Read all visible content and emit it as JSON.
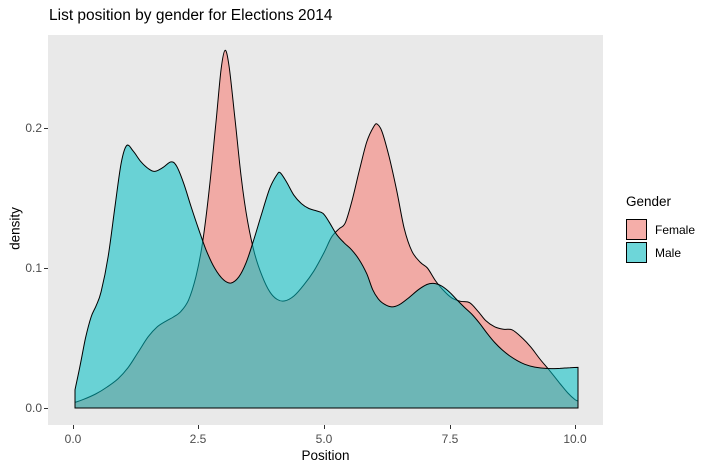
{
  "title": "List position by gender for Elections 2014",
  "axes": {
    "x": {
      "label": "Position",
      "ticks": [
        "0.0",
        "2.5",
        "5.0",
        "7.5",
        "10.0"
      ]
    },
    "y": {
      "label": "density",
      "ticks": [
        "0.0",
        "0.1",
        "0.2"
      ]
    }
  },
  "legend": {
    "title": "Gender",
    "items": [
      {
        "label": "Female",
        "color": "#F8766D"
      },
      {
        "label": "Male",
        "color": "#00BFC4"
      }
    ]
  },
  "panel_background": "#e9e9e9",
  "chart_data": {
    "type": "area",
    "subtype": "overlapping-density",
    "title": "List position by gender for Elections 2014",
    "xlabel": "Position",
    "ylabel": "density",
    "xlim": [
      -0.5,
      10.6
    ],
    "ylim": [
      -0.013,
      0.266
    ],
    "x_ticks": [
      0,
      2.5,
      5,
      7.5,
      10
    ],
    "y_ticks": [
      0,
      0.1,
      0.2
    ],
    "grid": false,
    "legend_position": "right",
    "fill_opacity": 0.55,
    "outline_color": "#000000",
    "series": [
      {
        "name": "Female",
        "color": "#F8766D",
        "points": [
          [
            0.04,
            0.004
          ],
          [
            0.2,
            0.006
          ],
          [
            0.45,
            0.01
          ],
          [
            0.68,
            0.015
          ],
          [
            0.9,
            0.021
          ],
          [
            1.1,
            0.029
          ],
          [
            1.3,
            0.04
          ],
          [
            1.5,
            0.051
          ],
          [
            1.68,
            0.058
          ],
          [
            1.85,
            0.062
          ],
          [
            2.0,
            0.065
          ],
          [
            2.15,
            0.069
          ],
          [
            2.3,
            0.077
          ],
          [
            2.45,
            0.094
          ],
          [
            2.58,
            0.118
          ],
          [
            2.72,
            0.158
          ],
          [
            2.85,
            0.205
          ],
          [
            2.95,
            0.242
          ],
          [
            3.03,
            0.2555
          ],
          [
            3.11,
            0.244
          ],
          [
            3.22,
            0.209
          ],
          [
            3.35,
            0.165
          ],
          [
            3.48,
            0.133
          ],
          [
            3.62,
            0.11
          ],
          [
            3.77,
            0.094
          ],
          [
            3.92,
            0.083
          ],
          [
            4.07,
            0.0775
          ],
          [
            4.22,
            0.0765
          ],
          [
            4.4,
            0.08
          ],
          [
            4.6,
            0.088
          ],
          [
            4.8,
            0.098
          ],
          [
            5.0,
            0.111
          ],
          [
            5.15,
            0.122
          ],
          [
            5.3,
            0.128
          ],
          [
            5.42,
            0.132
          ],
          [
            5.55,
            0.147
          ],
          [
            5.7,
            0.169
          ],
          [
            5.85,
            0.19
          ],
          [
            6.0,
            0.2015
          ],
          [
            6.07,
            0.2025
          ],
          [
            6.16,
            0.197
          ],
          [
            6.3,
            0.179
          ],
          [
            6.45,
            0.155
          ],
          [
            6.6,
            0.128
          ],
          [
            6.75,
            0.112
          ],
          [
            6.92,
            0.104
          ],
          [
            7.06,
            0.1
          ],
          [
            7.22,
            0.091
          ],
          [
            7.38,
            0.084
          ],
          [
            7.55,
            0.0785
          ],
          [
            7.72,
            0.0762
          ],
          [
            7.9,
            0.0752
          ],
          [
            8.07,
            0.069
          ],
          [
            8.22,
            0.0625
          ],
          [
            8.4,
            0.058
          ],
          [
            8.58,
            0.0562
          ],
          [
            8.75,
            0.0558
          ],
          [
            8.95,
            0.05
          ],
          [
            9.12,
            0.0435
          ],
          [
            9.3,
            0.035
          ],
          [
            9.5,
            0.0265
          ],
          [
            9.7,
            0.0175
          ],
          [
            9.85,
            0.011
          ],
          [
            10.0,
            0.006
          ],
          [
            10.06,
            0.005
          ]
        ]
      },
      {
        "name": "Male",
        "color": "#00BFC4",
        "points": [
          [
            0.04,
            0.013
          ],
          [
            0.14,
            0.03
          ],
          [
            0.25,
            0.05
          ],
          [
            0.36,
            0.065
          ],
          [
            0.46,
            0.073
          ],
          [
            0.56,
            0.083
          ],
          [
            0.7,
            0.108
          ],
          [
            0.84,
            0.145
          ],
          [
            0.96,
            0.175
          ],
          [
            1.07,
            0.1875
          ],
          [
            1.2,
            0.1835
          ],
          [
            1.35,
            0.176
          ],
          [
            1.5,
            0.171
          ],
          [
            1.63,
            0.169
          ],
          [
            1.8,
            0.172
          ],
          [
            1.95,
            0.1758
          ],
          [
            2.06,
            0.173
          ],
          [
            2.2,
            0.161
          ],
          [
            2.35,
            0.144
          ],
          [
            2.5,
            0.128
          ],
          [
            2.65,
            0.113
          ],
          [
            2.82,
            0.1
          ],
          [
            3.0,
            0.0915
          ],
          [
            3.15,
            0.0893
          ],
          [
            3.3,
            0.0935
          ],
          [
            3.45,
            0.104
          ],
          [
            3.6,
            0.12
          ],
          [
            3.76,
            0.139
          ],
          [
            3.92,
            0.157
          ],
          [
            4.06,
            0.1665
          ],
          [
            4.13,
            0.168
          ],
          [
            4.26,
            0.161
          ],
          [
            4.4,
            0.152
          ],
          [
            4.55,
            0.146
          ],
          [
            4.7,
            0.1425
          ],
          [
            4.85,
            0.1408
          ],
          [
            4.98,
            0.139
          ],
          [
            5.1,
            0.133
          ],
          [
            5.25,
            0.124
          ],
          [
            5.4,
            0.118
          ],
          [
            5.55,
            0.113
          ],
          [
            5.7,
            0.106
          ],
          [
            5.85,
            0.096
          ],
          [
            5.97,
            0.0845
          ],
          [
            6.08,
            0.078
          ],
          [
            6.2,
            0.0742
          ],
          [
            6.35,
            0.0722
          ],
          [
            6.5,
            0.0738
          ],
          [
            6.68,
            0.0785
          ],
          [
            6.88,
            0.0845
          ],
          [
            7.05,
            0.0882
          ],
          [
            7.18,
            0.089
          ],
          [
            7.34,
            0.0872
          ],
          [
            7.5,
            0.0828
          ],
          [
            7.65,
            0.0772
          ],
          [
            7.8,
            0.0718
          ],
          [
            7.95,
            0.0668
          ],
          [
            8.1,
            0.0605
          ],
          [
            8.25,
            0.0533
          ],
          [
            8.4,
            0.0468
          ],
          [
            8.55,
            0.0415
          ],
          [
            8.7,
            0.0372
          ],
          [
            8.85,
            0.0338
          ],
          [
            9.0,
            0.0312
          ],
          [
            9.2,
            0.0292
          ],
          [
            9.45,
            0.0282
          ],
          [
            9.7,
            0.0283
          ],
          [
            9.9,
            0.0288
          ],
          [
            10.06,
            0.029
          ]
        ]
      }
    ]
  }
}
